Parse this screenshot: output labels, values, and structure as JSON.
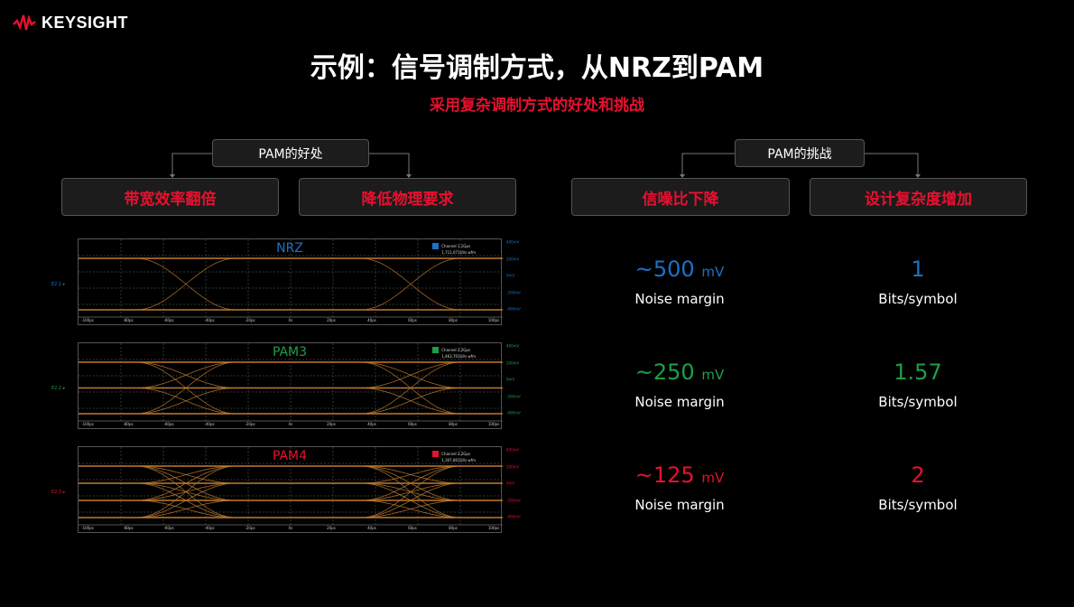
{
  "brand": {
    "name": "KEYSIGHT",
    "color": "#e8102f"
  },
  "title": "示例：信号调制方式，从NRZ到PAM",
  "subtitle": "采用复杂调制方式的好处和挑战",
  "benefits": {
    "header": "PAM的好处",
    "items": [
      "带宽效率翻倍",
      "降低物理要求"
    ]
  },
  "challenges": {
    "header": "PAM的挑战",
    "items": [
      "信噪比下降",
      "设计复杂度增加"
    ]
  },
  "plots": [
    {
      "title": "NRZ",
      "channel": "E2.1",
      "color": "#1a73c8",
      "levels": 2,
      "legend": [
        "Channel 1.1Gps",
        "1,711,071UI/s wfm"
      ],
      "yticks": [
        "400mV",
        "200mV",
        "0mV",
        "-200mV",
        "-400mV"
      ]
    },
    {
      "title": "PAM3",
      "channel": "E2.2",
      "color": "#1e9e4a",
      "levels": 3,
      "legend": [
        "Channel 2.2Gps",
        "1,463,701UI/s wfm"
      ],
      "yticks": [
        "400mV",
        "200mV",
        "0mV",
        "-200mV",
        "-400mV"
      ]
    },
    {
      "title": "PAM4",
      "channel": "E2.3",
      "color": "#e8102f",
      "levels": 4,
      "legend": [
        "Channel 2.2Gps",
        "1,307,801UI/s wfm"
      ],
      "yticks": [
        "400mV",
        "200mV",
        "0mV",
        "-200mV",
        "-400mV"
      ]
    }
  ],
  "xticks": [
    "-100ps",
    "-80ps",
    "-60ps",
    "-40ps",
    "-20ps",
    "0s",
    "20ps",
    "40ps",
    "60ps",
    "80ps",
    "100ps"
  ],
  "stats": [
    {
      "margin_value": "~500",
      "margin_unit": "mV",
      "margin_label": "Noise margin",
      "bits": "1",
      "bits_label": "Bits/symbol",
      "color": "#1a73c8"
    },
    {
      "margin_value": "~250",
      "margin_unit": "mV",
      "margin_label": "Noise margin",
      "bits": "1.57",
      "bits_label": "Bits/symbol",
      "color": "#1e9e4a"
    },
    {
      "margin_value": "~125",
      "margin_unit": "mV",
      "margin_label": "Noise margin",
      "bits": "2",
      "bits_label": "Bits/symbol",
      "color": "#e8102f"
    }
  ],
  "trace_color": "#c07a2c"
}
